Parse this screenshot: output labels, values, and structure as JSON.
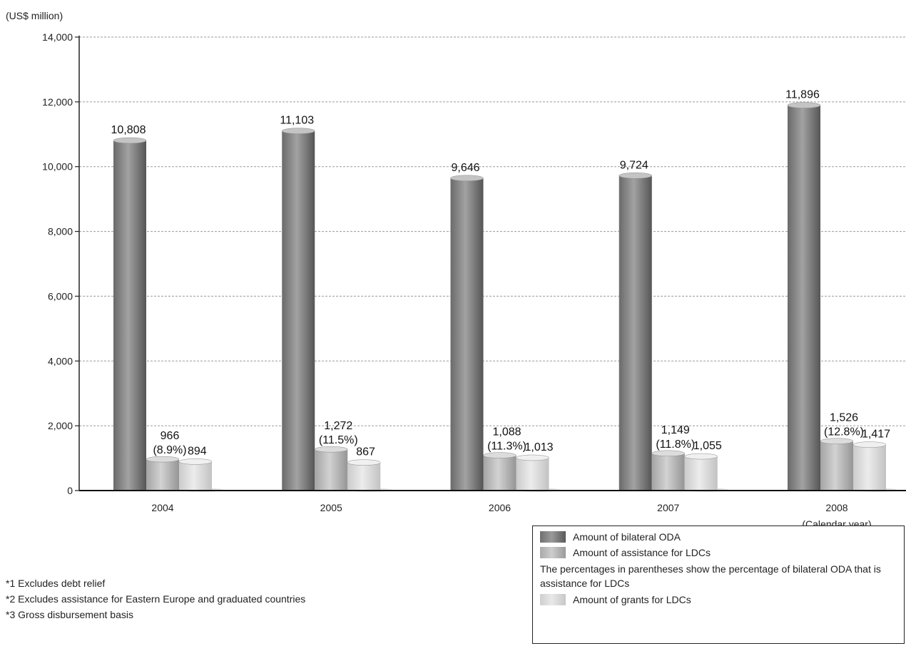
{
  "chart_data": {
    "type": "bar",
    "y_unit_label": "(US$ million)",
    "x_unit_label": "(Calendar year)",
    "categories": [
      "2004",
      "2005",
      "2006",
      "2007",
      "2008"
    ],
    "ylim": [
      0,
      14000
    ],
    "yticks": [
      0,
      2000,
      4000,
      6000,
      8000,
      10000,
      12000,
      14000
    ],
    "ytick_labels": [
      "0",
      "2,000",
      "4,000",
      "6,000",
      "8,000",
      "10,000",
      "12,000",
      "14,000"
    ],
    "grid": true,
    "series": [
      {
        "name": "Amount of bilateral ODA",
        "values": [
          10808,
          11103,
          9646,
          9724,
          11896
        ],
        "labels": [
          "10,808",
          "11,103",
          "9,646",
          "9,724",
          "11,896"
        ]
      },
      {
        "name": "Amount of assistance for LDCs",
        "values": [
          966,
          1272,
          1088,
          1149,
          1526
        ],
        "labels": [
          "966",
          "1,272",
          "1,088",
          "1,149",
          "1,526"
        ],
        "percent_labels": [
          "(8.9%)",
          "(11.5%)",
          "(11.3%)",
          "(11.8%)",
          "(12.8%)"
        ]
      },
      {
        "name": "Amount of grants for LDCs",
        "values": [
          894,
          867,
          1013,
          1055,
          1417
        ],
        "labels": [
          "894",
          "867",
          "1,013",
          "1,055",
          "1,417"
        ]
      }
    ],
    "colors": {
      "oda": "#8a8a8a",
      "ldc": "#bdbdbd",
      "grant": "#dedede"
    }
  },
  "legend": {
    "oda": "Amount of bilateral ODA",
    "ldc": "Amount of assistance for LDCs",
    "note": "The percentages in parentheses show the percentage of bilateral ODA that is assistance for LDCs",
    "grant": "Amount of grants for LDCs",
    "placement": "bottom-right"
  },
  "footnotes": [
    "*1  Excludes debt relief",
    "*2  Excludes assistance for Eastern Europe and graduated countries",
    "*3  Gross disbursement basis"
  ]
}
